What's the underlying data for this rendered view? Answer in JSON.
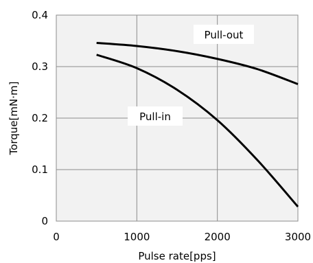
{
  "chart_data": {
    "type": "line",
    "xlabel": "Pulse rate[pps]",
    "ylabel": "Torque[mN·m]",
    "xlim": [
      0,
      3000
    ],
    "ylim": [
      0,
      0.4
    ],
    "x_ticks": [
      "0",
      "1000",
      "2000",
      "3000"
    ],
    "y_ticks": [
      "0",
      "0.1",
      "0.2",
      "0.3",
      "0.4"
    ],
    "x_tick_values": [
      0,
      1000,
      2000,
      3000
    ],
    "y_tick_values": [
      0,
      0.1,
      0.2,
      0.3,
      0.4
    ],
    "grid": true,
    "plot_background": "#f2f2f2",
    "grid_color": "#8c8c8c",
    "line_color": "#000000",
    "series": [
      {
        "name": "Pull-out",
        "x": [
          500,
          1000,
          1500,
          2000,
          2500,
          3000
        ],
        "y": [
          0.346,
          0.34,
          0.33,
          0.315,
          0.295,
          0.266
        ]
      },
      {
        "name": "Pull-in",
        "x": [
          500,
          1000,
          1500,
          2000,
          2500,
          3000
        ],
        "y": [
          0.323,
          0.297,
          0.255,
          0.196,
          0.118,
          0.028
        ]
      }
    ]
  }
}
